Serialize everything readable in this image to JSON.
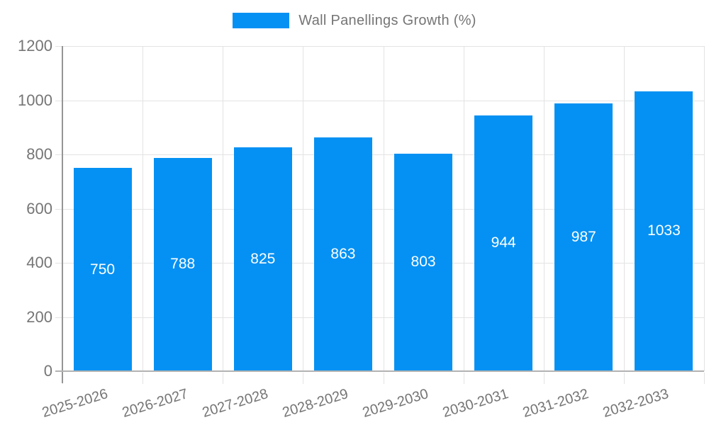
{
  "chart_data": {
    "type": "bar",
    "title": "",
    "legend": {
      "label": "Wall Panellings Growth (%)",
      "position": "top"
    },
    "categories": [
      "2025-2026",
      "2026-2027",
      "2027-2028",
      "2028-2029",
      "2029-2030",
      "2030-2031",
      "2031-2032",
      "2032-2033"
    ],
    "series": [
      {
        "name": "Wall Panellings Growth (%)",
        "values": [
          750,
          788,
          825,
          863,
          803,
          944,
          987,
          1033
        ]
      }
    ],
    "value_labels_shown": true,
    "xlabel": "",
    "ylabel": "",
    "ylim": [
      0,
      1200
    ],
    "yticks": [
      0,
      200,
      400,
      600,
      800,
      1000,
      1200
    ],
    "grid": true,
    "colors": {
      "bar": "#0591f3",
      "axis_text": "#757575",
      "value_text": "#ffffff",
      "gridline": "#e3e3e3",
      "y_axis_line": "#959595",
      "x_axis_line": "#b2b2b2"
    }
  }
}
